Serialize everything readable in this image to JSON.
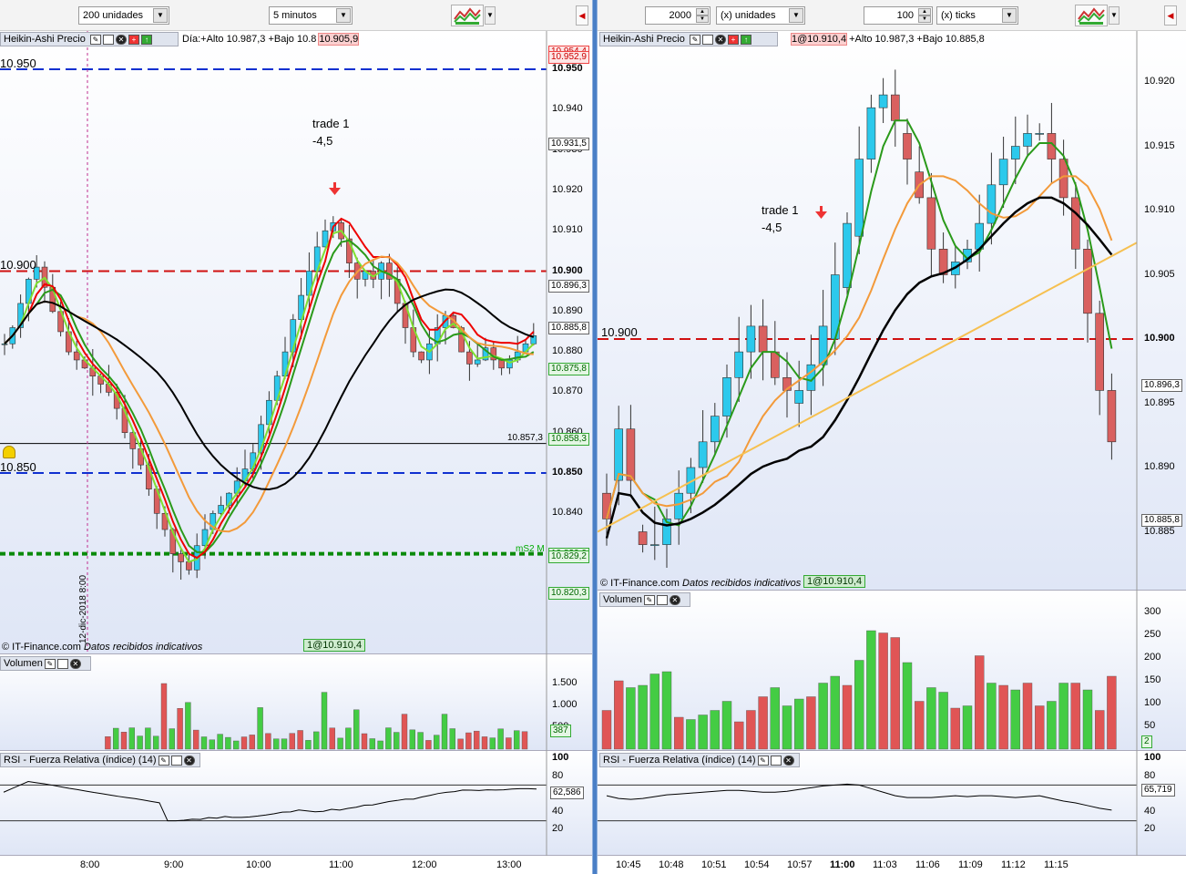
{
  "left": {
    "toolbar": {
      "units": "200 unidades",
      "timeframe": "5 minutos"
    },
    "price_label": "Heikin-Ashi Precio",
    "day_info": "Día:+Alto 10.987,3 +Bajo 10.8",
    "day_info_tail": "10.905,9",
    "price_ticks": [
      "10.950",
      "10.940",
      "10.930",
      "10.920",
      "10.910",
      "10.900",
      "10.890",
      "10.880",
      "10.870",
      "10.860",
      "10.850",
      "10.840"
    ],
    "price_tags": {
      "t1": "10.954,4",
      "t2": "10.952,9",
      "t3": "10.931,5",
      "t4": "10.896,3",
      "t5": "10.885,8",
      "t6": "10.875,8",
      "t7": "10.858,3",
      "t8": "10.830,0",
      "t9": "10.829,2",
      "t10": "10.820,3"
    },
    "level_labels": {
      "l950": "10.950",
      "l900": "10.900",
      "l850": "10.850"
    },
    "hline_value": "10.857,3",
    "ms2_label": "mS2 M",
    "trade_title": "trade 1",
    "trade_value": "-4,5",
    "vertical_date": "12-dic-2018 8:00",
    "copyright": "© IT-Finance.com",
    "copyright_note": "Datos recibidos indicativos",
    "position_box": "1@10.910,4",
    "volume_label": "Volumen",
    "volume_ticks": [
      "1.500",
      "1.000",
      "500"
    ],
    "volume_tag": "387",
    "rsi_label": "RSI - Fuerza Relativa (índice) (14)",
    "rsi_ticks": [
      "100",
      "80",
      "60",
      "40",
      "20"
    ],
    "rsi_tag": "62,586",
    "time_labels": [
      "8:00",
      "9:00",
      "10:00",
      "11:00",
      "12:00",
      "13:00"
    ]
  },
  "right": {
    "toolbar": {
      "units_value": "2000",
      "units": "(x) unidades",
      "ticks_value": "100",
      "ticks": "(x) ticks"
    },
    "price_label": "Heikin-Ashi Precio",
    "day_info": "+Alto 10.987,3 +Bajo 10.885,8",
    "day_info_head": "1@10.910,4",
    "price_ticks": [
      "10.920",
      "10.915",
      "10.910",
      "10.905",
      "10.900",
      "10.895",
      "10.890",
      "10.885"
    ],
    "price_tags": {
      "t1": "10.896,3",
      "t2": "10.885,8"
    },
    "level_label": "10.900",
    "trade_title": "trade 1",
    "trade_value": "-4,5",
    "copyright": "© IT-Finance.com",
    "copyright_note": "Datos recibidos indicativos",
    "position_box": "1@10.910,4",
    "volume_label": "Volumen",
    "volume_ticks": [
      "300",
      "250",
      "200",
      "150",
      "100",
      "50"
    ],
    "volume_tag": "2",
    "rsi_label": "RSI - Fuerza Relativa (índice) (14)",
    "rsi_ticks": [
      "100",
      "80",
      "60",
      "40",
      "20"
    ],
    "rsi_tag": "65,719",
    "time_labels": [
      "10:45",
      "10:48",
      "10:51",
      "10:54",
      "10:57",
      "11:00",
      "11:03",
      "11:06",
      "11:09",
      "11:12",
      "11:15"
    ]
  },
  "colors": {
    "bull": "#2cc9ec",
    "bear": "#d9605f",
    "red_line": "#e00",
    "green_line": "#2a9a1a",
    "lime_line": "#7fe030",
    "orange_line": "#f39a3a",
    "black_line": "#000",
    "vol_green": "#44cc44",
    "vol_red": "#e05555"
  }
}
